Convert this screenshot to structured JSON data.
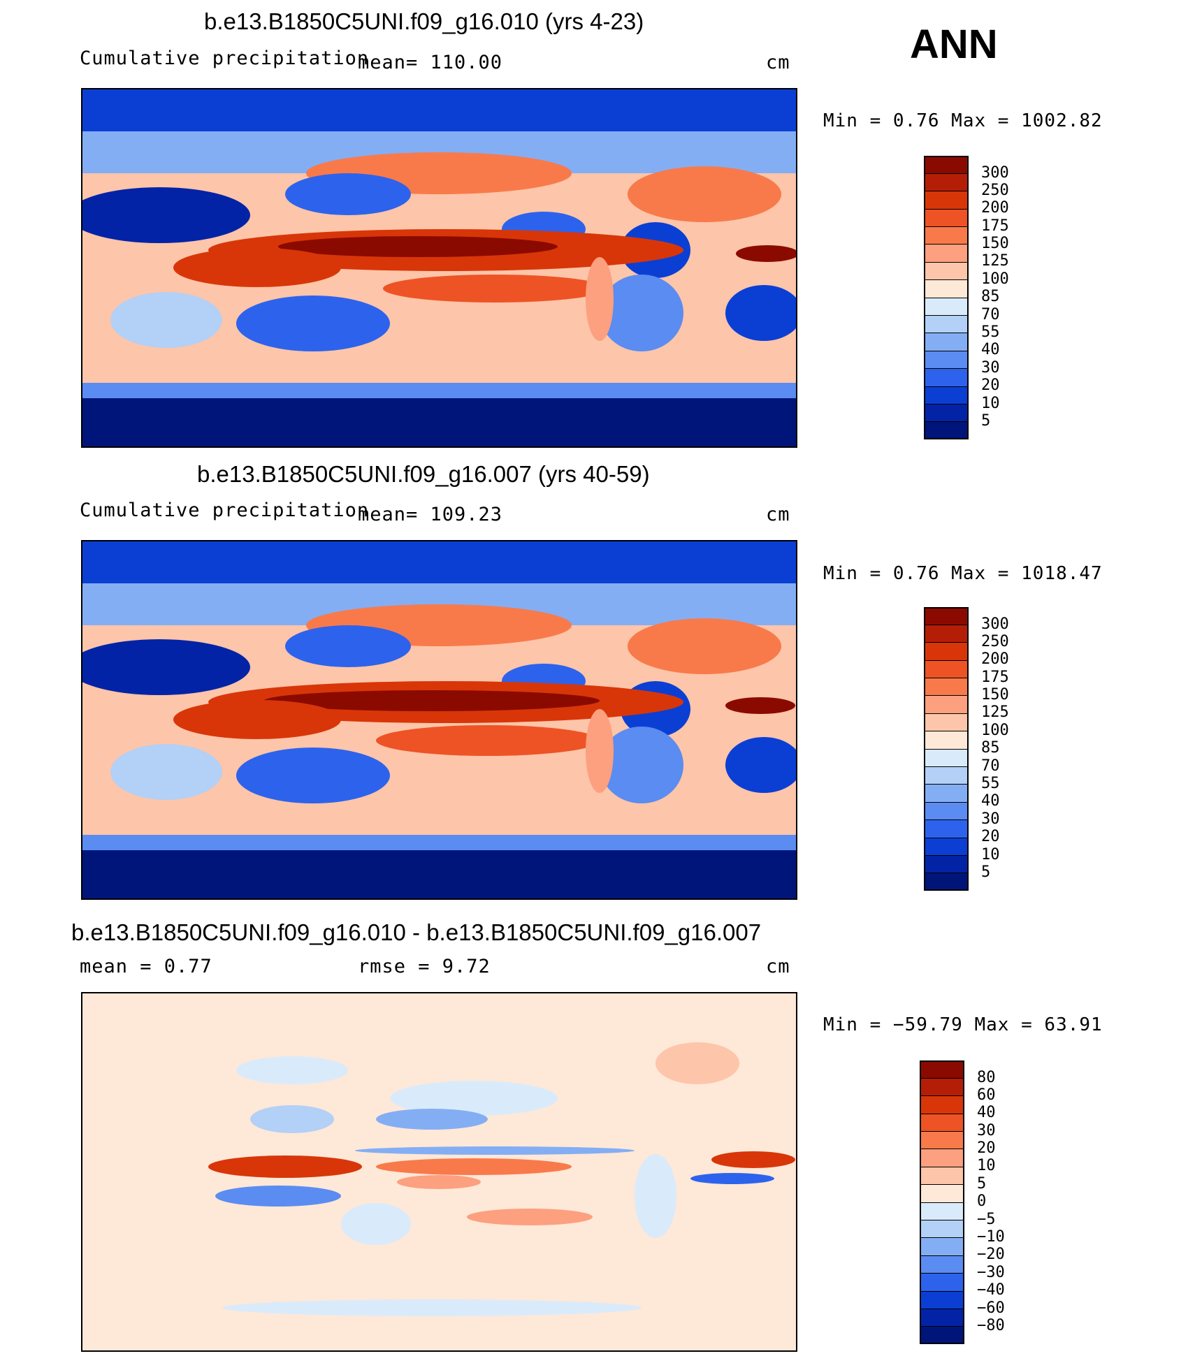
{
  "season": "ANN",
  "panels": [
    {
      "title": "b.e13.B1850C5UNI.f09_g16.010 (yrs 4-23)",
      "left_label": "Cumulative precipitation",
      "center_label": "mean=  110.00",
      "units": "cm",
      "minmax": "Min =    0.76 Max =  1002.82",
      "colorbar": {
        "levels": [
          "300",
          "250",
          "200",
          "175",
          "150",
          "125",
          "100",
          "85",
          "70",
          "55",
          "40",
          "30",
          "20",
          "10",
          "5"
        ],
        "colors": [
          "#8b0a00",
          "#b51e06",
          "#d83609",
          "#ee5325",
          "#f87a4b",
          "#fca07f",
          "#fdc5a9",
          "#fee8d8",
          "#d9ebfb",
          "#b3d0f7",
          "#84aef4",
          "#5b8cf1",
          "#2d63ec",
          "#0b3fd4",
          "#0323a6",
          "#00157a"
        ]
      }
    },
    {
      "title": "b.e13.B1850C5UNI.f09_g16.007 (yrs 40-59)",
      "left_label": "Cumulative precipitation",
      "center_label": "mean=  109.23",
      "units": "cm",
      "minmax": "Min =    0.76 Max =  1018.47",
      "colorbar": {
        "levels": [
          "300",
          "250",
          "200",
          "175",
          "150",
          "125",
          "100",
          "85",
          "70",
          "55",
          "40",
          "30",
          "20",
          "10",
          "5"
        ],
        "colors": [
          "#8b0a00",
          "#b51e06",
          "#d83609",
          "#ee5325",
          "#f87a4b",
          "#fca07f",
          "#fdc5a9",
          "#fee8d8",
          "#d9ebfb",
          "#b3d0f7",
          "#84aef4",
          "#5b8cf1",
          "#2d63ec",
          "#0b3fd4",
          "#0323a6",
          "#00157a"
        ]
      }
    },
    {
      "title": "b.e13.B1850C5UNI.f09_g16.010 - b.e13.B1850C5UNI.f09_g16.007",
      "left_label": "mean =    0.77",
      "center_label": "rmse =    9.72",
      "units": "cm",
      "minmax": "Min = −59.79 Max =   63.91",
      "colorbar": {
        "levels": [
          "80",
          "60",
          "40",
          "30",
          "20",
          "10",
          "5",
          "0",
          "−5",
          "−10",
          "−20",
          "−30",
          "−40",
          "−60",
          "−80"
        ],
        "colors": [
          "#8b0a00",
          "#b51e06",
          "#d83609",
          "#ee5325",
          "#f87a4b",
          "#fca07f",
          "#fdc5a9",
          "#fee8d8",
          "#d9ebfb",
          "#b3d0f7",
          "#84aef4",
          "#5b8cf1",
          "#2d63ec",
          "#0b3fd4",
          "#0323a6",
          "#00157a"
        ]
      }
    }
  ]
}
